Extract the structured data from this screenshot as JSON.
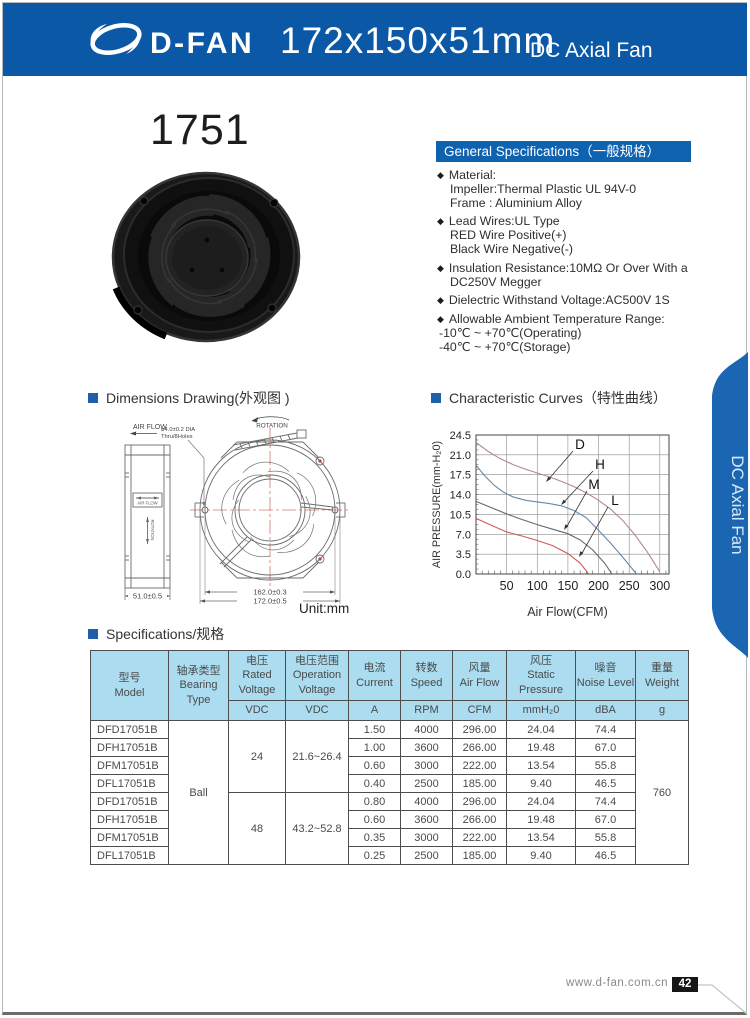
{
  "icons": {
    "diamond": "◆"
  },
  "page": {
    "header": {
      "brand": "D-FAN",
      "title": "172x150x51mm",
      "subtitle": "DC Axial Fan"
    },
    "model_number": "1751",
    "side_tab": "DC Axial Fan",
    "footer": {
      "website": "www.d-fan.com.cn",
      "page_number": "42"
    }
  },
  "general_specs": {
    "heading": "General Specifications（一般规格）",
    "items": [
      {
        "lines": [
          "Material:",
          "Impeller:Thermal Plastic UL 94V-0",
          "Frame : Aluminium Alloy"
        ]
      },
      {
        "lines": [
          "Lead Wires:UL Type",
          "RED Wire Positive(+)",
          "Black Wire Negative(-)"
        ]
      },
      {
        "lines": [
          "Insulation Resistance:10MΩ Or Over With a",
          "DC250V Megger"
        ]
      },
      {
        "lines": [
          "Dielectric Withstand Voltage:AC500V 1S"
        ]
      },
      {
        "lines": [
          "Allowable Ambient Temperature Range:",
          "-10℃ ~ +70℃(Operating)",
          "-40℃ ~ +70℃(Storage)"
        ]
      }
    ]
  },
  "dimensions": {
    "heading": "Dimensions Drawing(外观图 )",
    "labels": {
      "air_flow": "AIR FLOW",
      "hole_note_1": "ø4.0±0.2  DIA",
      "hole_note_2": "Thru/8Holes",
      "rotation": "ROTATION",
      "depth": "51.0±0.5",
      "bolt_pitch": "162.0±0.3",
      "width": "172.0±0.5",
      "unit": "Unit:mm"
    }
  },
  "curves": {
    "heading": "Characteristic Curves（特性曲线）"
  },
  "chart_data": {
    "type": "line",
    "title": "Characteristic Curves（特性曲线）",
    "xlabel": "Air  Flow(CFM)",
    "ylabel": "AIR PRESSURE(mm-H₂0)",
    "xlim": [
      0,
      315
    ],
    "ylim": [
      0,
      24.5
    ],
    "xticks": [
      50,
      100,
      150,
      200,
      250,
      300
    ],
    "yticks": [
      0.0,
      3.5,
      7.0,
      10.5,
      14.0,
      17.5,
      21.0,
      24.5
    ],
    "grid": true,
    "legend_position": "inline-labels",
    "series": [
      {
        "name": "D",
        "color": "#b08b88",
        "points": [
          [
            0,
            23.2
          ],
          [
            20,
            21.6
          ],
          [
            40,
            20.3
          ],
          [
            60,
            19.3
          ],
          [
            80,
            18.5
          ],
          [
            100,
            17.8
          ],
          [
            120,
            17.1
          ],
          [
            140,
            16.3
          ],
          [
            160,
            15.4
          ],
          [
            180,
            14.3
          ],
          [
            200,
            13.0
          ],
          [
            220,
            11.4
          ],
          [
            240,
            9.4
          ],
          [
            260,
            6.8
          ],
          [
            280,
            3.8
          ],
          [
            300,
            0.4
          ]
        ]
      },
      {
        "name": "H",
        "color": "#6488aa",
        "points": [
          [
            0,
            19.2
          ],
          [
            15,
            17.2
          ],
          [
            30,
            15.6
          ],
          [
            45,
            14.4
          ],
          [
            60,
            13.6
          ],
          [
            80,
            13.0
          ],
          [
            100,
            12.7
          ],
          [
            120,
            12.4
          ],
          [
            140,
            12.0
          ],
          [
            160,
            11.2
          ],
          [
            180,
            9.9
          ],
          [
            200,
            7.7
          ],
          [
            220,
            5.4
          ],
          [
            240,
            2.9
          ],
          [
            262,
            0
          ]
        ]
      },
      {
        "name": "M",
        "color": "#5d6b79",
        "points": [
          [
            0,
            12.8
          ],
          [
            25,
            11.7
          ],
          [
            50,
            10.6
          ],
          [
            75,
            9.6
          ],
          [
            100,
            8.7
          ],
          [
            125,
            7.9
          ],
          [
            150,
            7.1
          ],
          [
            170,
            6.0
          ],
          [
            190,
            4.3
          ],
          [
            210,
            1.9
          ],
          [
            222,
            0
          ]
        ]
      },
      {
        "name": "L",
        "color": "#cd5d52",
        "points": [
          [
            0,
            9.8
          ],
          [
            25,
            8.6
          ],
          [
            50,
            7.4
          ],
          [
            75,
            6.7
          ],
          [
            100,
            5.9
          ],
          [
            125,
            5.0
          ],
          [
            150,
            3.6
          ],
          [
            170,
            1.9
          ],
          [
            184,
            0
          ]
        ]
      }
    ]
  },
  "spec_table": {
    "heading": "Specifications/规格",
    "columns": [
      {
        "key": "model",
        "label": [
          "型号",
          "Model"
        ],
        "unit": null
      },
      {
        "key": "bearing",
        "label": [
          "轴承类型",
          "Bearing",
          "Type"
        ],
        "unit": null
      },
      {
        "key": "rated-voltage",
        "label": [
          "电压",
          "Rated",
          "Voltage"
        ],
        "unit": "VDC"
      },
      {
        "key": "operation-voltage",
        "label": [
          "电压范围",
          "Operation",
          "Voltage"
        ],
        "unit": "VDC"
      },
      {
        "key": "current",
        "label": [
          "电流",
          "Current"
        ],
        "unit": "A"
      },
      {
        "key": "speed",
        "label": [
          "转数",
          "Speed"
        ],
        "unit": "RPM"
      },
      {
        "key": "air-flow",
        "label": [
          "风量",
          "Air Flow"
        ],
        "unit": "CFM"
      },
      {
        "key": "static-pressure",
        "label": [
          "风压",
          "Static",
          "Pressure"
        ],
        "unit": "mmH₂0"
      },
      {
        "key": "noise-level",
        "label": [
          "噪音",
          "Noise Level"
        ],
        "unit": "dBA"
      },
      {
        "key": "weight",
        "label": [
          "重量",
          "Weight"
        ],
        "unit": "g"
      }
    ],
    "bearing_type": "Ball",
    "weight": "760",
    "groups": [
      {
        "rated_voltage": "24",
        "operation_voltage": "21.6~26.4",
        "rows": [
          {
            "model": "DFD17051B",
            "current": "1.50",
            "speed": "4000",
            "air_flow": "296.00",
            "static_pressure": "24.04",
            "noise": "74.4"
          },
          {
            "model": "DFH17051B",
            "current": "1.00",
            "speed": "3600",
            "air_flow": "266.00",
            "static_pressure": "19.48",
            "noise": "67.0"
          },
          {
            "model": "DFM17051B",
            "current": "0.60",
            "speed": "3000",
            "air_flow": "222.00",
            "static_pressure": "13.54",
            "noise": "55.8"
          },
          {
            "model": "DFL17051B",
            "current": "0.40",
            "speed": "2500",
            "air_flow": "185.00",
            "static_pressure": "9.40",
            "noise": "46.5"
          }
        ]
      },
      {
        "rated_voltage": "48",
        "operation_voltage": "43.2~52.8",
        "rows": [
          {
            "model": "DFD17051B",
            "current": "0.80",
            "speed": "4000",
            "air_flow": "296.00",
            "static_pressure": "24.04",
            "noise": "74.4"
          },
          {
            "model": "DFH17051B",
            "current": "0.60",
            "speed": "3600",
            "air_flow": "266.00",
            "static_pressure": "19.48",
            "noise": "67.0"
          },
          {
            "model": "DFM17051B",
            "current": "0.35",
            "speed": "3000",
            "air_flow": "222.00",
            "static_pressure": "13.54",
            "noise": "55.8"
          },
          {
            "model": "DFL17051B",
            "current": "0.25",
            "speed": "2500",
            "air_flow": "185.00",
            "static_pressure": "9.40",
            "noise": "46.5"
          }
        ]
      }
    ]
  }
}
